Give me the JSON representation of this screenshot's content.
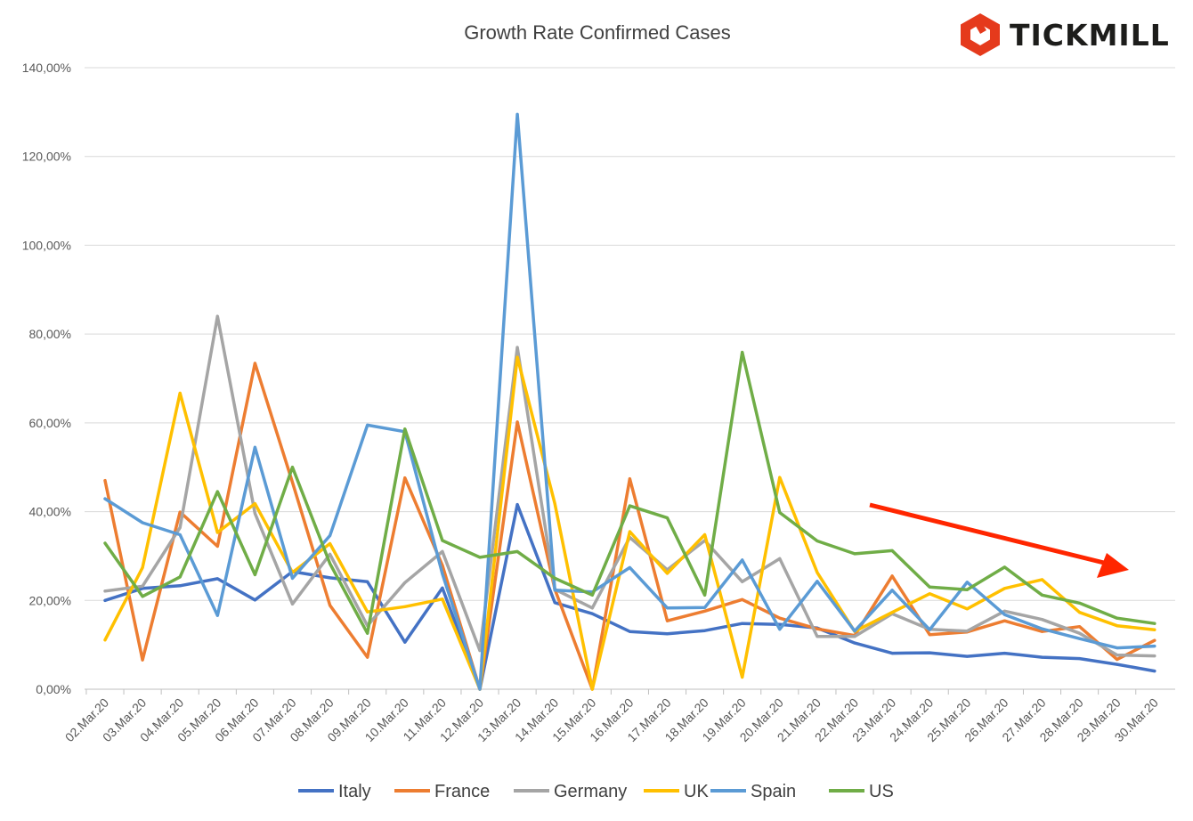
{
  "brand": {
    "name": "TICKMILL",
    "color": "#e53a1c"
  },
  "chart_data": {
    "type": "line",
    "title": "Growth Rate Confirmed Cases",
    "xlabel": "",
    "ylabel": "",
    "ylim": [
      0,
      140
    ],
    "y_ticks": [
      "0,00%",
      "20,00%",
      "40,00%",
      "60,00%",
      "80,00%",
      "100,00%",
      "120,00%",
      "140,00%"
    ],
    "grid": true,
    "legend": "bottom",
    "categories": [
      "02.Mar.20",
      "03.Mar.20",
      "04.Mar.20",
      "05.Mar.20",
      "06.Mar.20",
      "07.Mar.20",
      "08.Mar.20",
      "09.Mar.20",
      "10.Mar.20",
      "11.Mar.20",
      "12.Mar.20",
      "13.Mar.20",
      "14.Mar.20",
      "15.Mar.20",
      "16.Mar.20",
      "17.Mar.20",
      "18.Mar.20",
      "19.Mar.20",
      "20.Mar.20",
      "21.Mar.20",
      "22.Mar.20",
      "23.Mar.20",
      "24.Mar.20",
      "25.Mar.20",
      "26.Mar.20",
      "27.Mar.20",
      "28.Mar.20",
      "29.Mar.20",
      "30.Mar.20"
    ],
    "series": [
      {
        "name": "Italy",
        "color": "#4472c4",
        "values": [
          20.0,
          22.7,
          23.3,
          24.9,
          20.1,
          26.5,
          25.1,
          24.2,
          10.6,
          22.8,
          0.0,
          41.6,
          19.5,
          17.0,
          13.0,
          12.5,
          13.2,
          14.8,
          14.6,
          13.8,
          10.4,
          8.1,
          8.2,
          7.4,
          8.1,
          7.2,
          6.9,
          5.6,
          4.1
        ]
      },
      {
        "name": "France",
        "color": "#ed7d31",
        "values": [
          47.0,
          6.6,
          39.9,
          32.2,
          73.4,
          46.6,
          18.9,
          7.2,
          47.6,
          27.9,
          0.0,
          60.2,
          22.5,
          0.0,
          47.4,
          15.4,
          17.6,
          20.2,
          16.0,
          13.6,
          12.1,
          25.5,
          12.3,
          12.9,
          15.4,
          13.0,
          14.1,
          6.7,
          11.0
        ]
      },
      {
        "name": "Germany",
        "color": "#a5a5a5",
        "values": [
          22.1,
          23.2,
          36.4,
          84.0,
          39.6,
          19.2,
          30.4,
          14.3,
          24.0,
          31.0,
          8.7,
          77.0,
          22.5,
          18.3,
          34.2,
          26.9,
          33.5,
          24.2,
          29.4,
          11.9,
          11.9,
          17.0,
          13.5,
          13.1,
          17.6,
          15.7,
          12.6,
          7.7,
          7.5
        ]
      },
      {
        "name": "UK",
        "color": "#ffc000",
        "values": [
          11.1,
          27.4,
          66.7,
          35.3,
          41.8,
          26.3,
          32.8,
          17.4,
          18.6,
          20.3,
          0.0,
          74.8,
          41.8,
          0.0,
          35.5,
          26.1,
          34.8,
          2.7,
          47.7,
          26.3,
          13.0,
          17.3,
          21.5,
          18.1,
          22.7,
          24.7,
          17.3,
          14.3,
          13.4
        ]
      },
      {
        "name": "Spain",
        "color": "#5b9bd5",
        "values": [
          42.9,
          37.5,
          34.8,
          16.6,
          54.5,
          25.0,
          34.6,
          59.5,
          58.0,
          26.0,
          0.0,
          129.5,
          22.3,
          21.9,
          27.4,
          18.3,
          18.4,
          29.1,
          13.5,
          24.3,
          13.1,
          22.3,
          13.4,
          24.1,
          16.8,
          13.6,
          11.4,
          9.3,
          9.7
        ]
      },
      {
        "name": "US",
        "color": "#70ad47",
        "values": [
          32.9,
          20.9,
          25.3,
          44.5,
          25.8,
          50.0,
          28.3,
          12.6,
          58.6,
          33.5,
          29.7,
          31.0,
          25.0,
          21.2,
          41.3,
          38.6,
          21.2,
          75.9,
          39.8,
          33.4,
          30.5,
          31.2,
          23.0,
          22.4,
          27.5,
          21.2,
          19.4,
          16.0,
          14.8
        ]
      }
    ],
    "annotations": [
      {
        "type": "arrow",
        "color": "#ff2600",
        "meaning": "downward trend"
      }
    ]
  }
}
